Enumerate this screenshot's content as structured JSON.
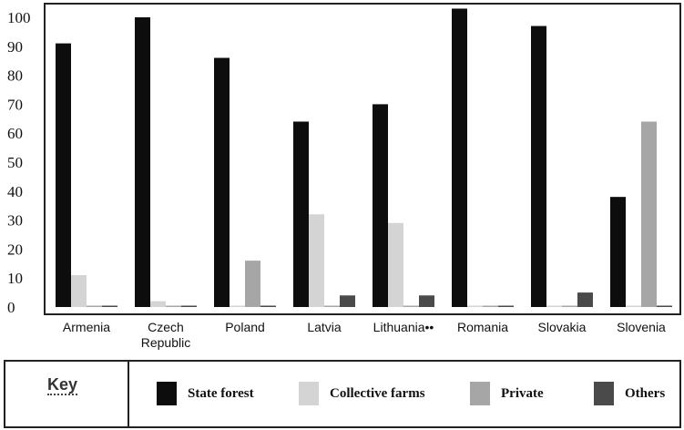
{
  "chart_data": {
    "type": "bar",
    "categories": [
      [
        "Armenia"
      ],
      [
        "Czech",
        "Republic"
      ],
      [
        "Poland"
      ],
      [
        "Latvia"
      ],
      [
        "Lithuania••"
      ],
      [
        "Romania"
      ],
      [
        "Slovakia"
      ],
      [
        "Slovenia"
      ]
    ],
    "series": [
      {
        "name": "State forest",
        "color": "#0d0d0d",
        "values": [
          91,
          100,
          86,
          64,
          70,
          103,
          97,
          38
        ]
      },
      {
        "name": "Collective farms",
        "color": "#d4d4d4",
        "values": [
          11,
          2,
          0,
          32,
          29,
          0,
          0,
          0
        ]
      },
      {
        "name": "Private",
        "color": "#a6a6a6",
        "values": [
          0,
          0,
          16,
          0,
          0,
          0,
          0,
          64
        ]
      },
      {
        "name": "Others",
        "color": "#4a4a4a",
        "values": [
          0,
          0,
          0,
          4,
          4,
          0,
          5,
          0
        ]
      }
    ],
    "yticks": [
      0,
      10,
      20,
      30,
      40,
      50,
      60,
      70,
      80,
      90,
      100
    ],
    "ylim": [
      0,
      105
    ],
    "legend_title": "Key",
    "legend_position": "bottom"
  }
}
